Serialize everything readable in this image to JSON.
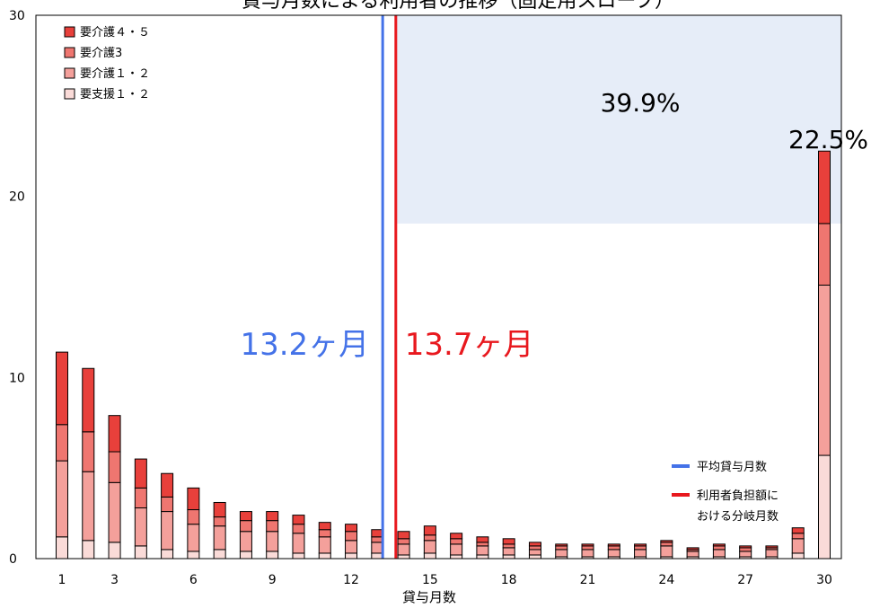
{
  "chart_data": {
    "type": "bar",
    "stacked": true,
    "title": "貸与月数による利用者の推移（固定用スロープ）",
    "xlabel": "貸与月数",
    "ylabel": "",
    "ylim": [
      0,
      30
    ],
    "yticks": [
      "0",
      "10",
      "20",
      "30"
    ],
    "xticks": [
      "1",
      "3",
      "6",
      "9",
      "12",
      "15",
      "18",
      "21",
      "24",
      "27",
      "30"
    ],
    "categories": [
      1,
      2,
      3,
      4,
      5,
      6,
      7,
      8,
      9,
      10,
      11,
      12,
      13,
      14,
      15,
      16,
      17,
      18,
      19,
      20,
      21,
      22,
      23,
      24,
      25,
      26,
      27,
      28,
      29,
      30
    ],
    "series": [
      {
        "name": "要支援１・２",
        "color": "#fadbd8",
        "values": [
          1.2,
          1.0,
          0.9,
          0.7,
          0.5,
          0.4,
          0.5,
          0.4,
          0.4,
          0.3,
          0.3,
          0.3,
          0.3,
          0.2,
          0.3,
          0.2,
          0.2,
          0.2,
          0.2,
          0.1,
          0.1,
          0.1,
          0.1,
          0.1,
          0.1,
          0.1,
          0.1,
          0.1,
          0.3,
          5.7
        ]
      },
      {
        "name": "要介護１・２",
        "color": "#f4a09b",
        "values": [
          4.2,
          3.8,
          3.3,
          2.1,
          2.1,
          1.5,
          1.3,
          1.1,
          1.1,
          1.1,
          0.9,
          0.7,
          0.6,
          0.6,
          0.7,
          0.6,
          0.5,
          0.4,
          0.3,
          0.4,
          0.4,
          0.4,
          0.4,
          0.6,
          0.3,
          0.4,
          0.3,
          0.4,
          0.8,
          9.4
        ]
      },
      {
        "name": "要介護3",
        "color": "#ef7670",
        "values": [
          2.0,
          2.2,
          1.7,
          1.1,
          0.8,
          0.8,
          0.5,
          0.6,
          0.6,
          0.5,
          0.4,
          0.5,
          0.3,
          0.3,
          0.3,
          0.3,
          0.2,
          0.2,
          0.2,
          0.2,
          0.2,
          0.2,
          0.2,
          0.2,
          0.1,
          0.2,
          0.2,
          0.1,
          0.3,
          3.4
        ]
      },
      {
        "name": "要介護４・５",
        "color": "#e8403b",
        "values": [
          4.0,
          3.5,
          2.0,
          1.6,
          1.3,
          1.2,
          0.8,
          0.5,
          0.5,
          0.5,
          0.4,
          0.4,
          0.4,
          0.4,
          0.5,
          0.3,
          0.3,
          0.3,
          0.2,
          0.1,
          0.1,
          0.1,
          0.1,
          0.1,
          0.1,
          0.1,
          0.1,
          0.1,
          0.3,
          4.0
        ]
      }
    ],
    "reference_lines": [
      {
        "value": 13.2,
        "label": "13.2ヶ月",
        "legend": "平均貸与月数",
        "color": "#4472e8"
      },
      {
        "value": 13.7,
        "label": "13.7ヶ月",
        "legend_lines": [
          "利用者負担額に",
          "おける分岐月数"
        ],
        "color": "#e8181e"
      }
    ],
    "shaded_region": {
      "x_from": 13.7,
      "y_from": 18.5,
      "y_to": 30,
      "color": "#e6edf8"
    },
    "annotations": [
      {
        "text": "39.9%",
        "x": 23,
        "y": 25.5
      },
      {
        "text": "22.5%",
        "x": 30,
        "y": 23
      }
    ],
    "legend_position": "top-left"
  }
}
